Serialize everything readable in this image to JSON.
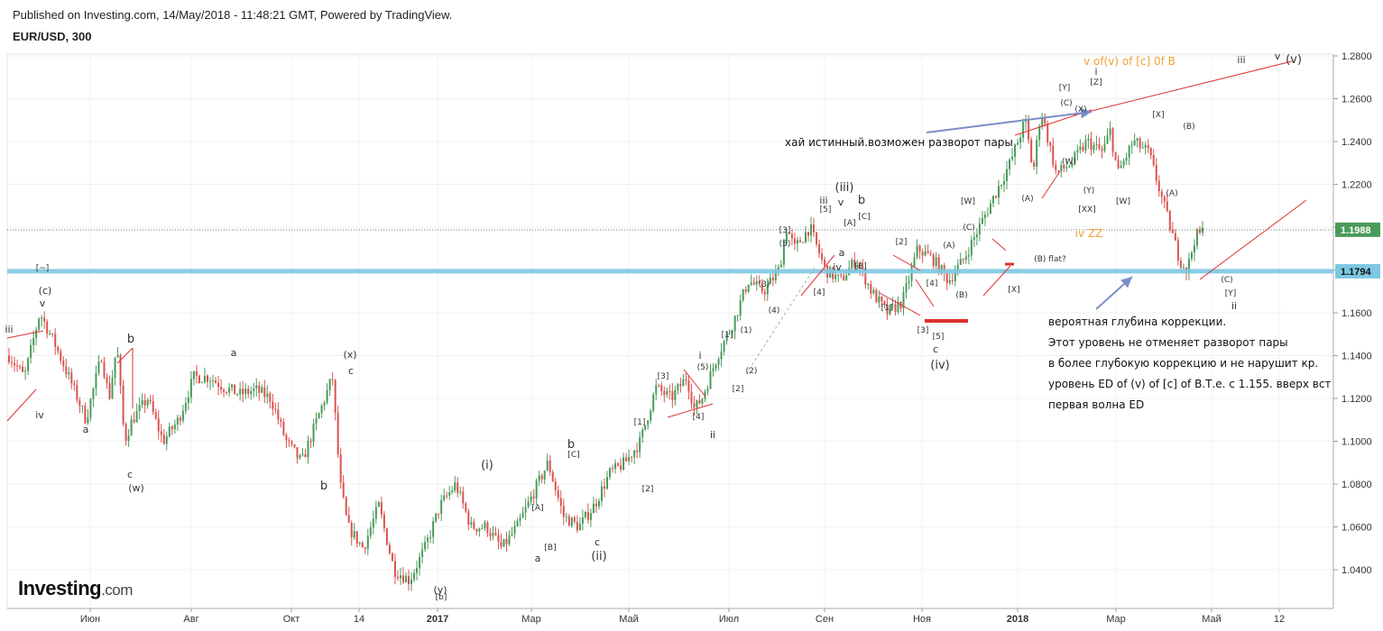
{
  "header": {
    "published": "Published on Investing.com, 14/May/2018 - 11:48:21 GMT, Powered by TradingView.",
    "symbol": "EUR/USD, 300"
  },
  "logo": {
    "main": "Investing",
    "suffix": ".com"
  },
  "colors": {
    "up": "#4a9a5a",
    "down": "#d9534f",
    "support": "#7ec8e3",
    "trendline": "#e03030",
    "arrow": "#7a8fc9",
    "orange": "#f0a030",
    "badge_current": "#4a9a5a",
    "badge_support": "#7ec8e3"
  },
  "chart_data": {
    "type": "candlestick",
    "x_ticks": [
      "Июн",
      "Авг",
      "Окт",
      "14",
      "2017",
      "Мар",
      "Май",
      "Июл",
      "Сен",
      "Ноя",
      "2018",
      "Мар",
      "Май",
      "12"
    ],
    "y_ticks": [
      "1.2800",
      "1.2600",
      "1.2400",
      "1.2200",
      "1.2000",
      "1.1800",
      "1.1600",
      "1.1400",
      "1.1200",
      "1.1000",
      "1.0800",
      "1.0600",
      "1.0400"
    ],
    "ylim": [
      1.025,
      1.285
    ],
    "current_price": "1.1988",
    "support_level": "1.1794",
    "path": [
      [
        0,
        1.14
      ],
      [
        2,
        1.13
      ],
      [
        4,
        1.16
      ],
      [
        6,
        1.145
      ],
      [
        8,
        1.128
      ],
      [
        10,
        1.11
      ],
      [
        12,
        1.14
      ],
      [
        13,
        1.12
      ],
      [
        14,
        1.145
      ],
      [
        15,
        1.1
      ],
      [
        16,
        1.11
      ],
      [
        18,
        1.12
      ],
      [
        20,
        1.1
      ],
      [
        22,
        1.11
      ],
      [
        24,
        1.13
      ],
      [
        26,
        1.13
      ],
      [
        28,
        1.125
      ],
      [
        30,
        1.122
      ],
      [
        32,
        1.124
      ],
      [
        34,
        1.12
      ],
      [
        36,
        1.1
      ],
      [
        38,
        1.09
      ],
      [
        40,
        1.11
      ],
      [
        42,
        1.13
      ],
      [
        43,
        1.08
      ],
      [
        44,
        1.06
      ],
      [
        46,
        1.05
      ],
      [
        48,
        1.07
      ],
      [
        50,
        1.04
      ],
      [
        52,
        1.035
      ],
      [
        54,
        1.05
      ],
      [
        56,
        1.07
      ],
      [
        58,
        1.08
      ],
      [
        60,
        1.06
      ],
      [
        62,
        1.06
      ],
      [
        64,
        1.05
      ],
      [
        66,
        1.06
      ],
      [
        68,
        1.075
      ],
      [
        70,
        1.09
      ],
      [
        72,
        1.065
      ],
      [
        74,
        1.06
      ],
      [
        76,
        1.07
      ],
      [
        78,
        1.085
      ],
      [
        80,
        1.09
      ],
      [
        82,
        1.1
      ],
      [
        84,
        1.125
      ],
      [
        86,
        1.12
      ],
      [
        88,
        1.13
      ],
      [
        89,
        1.115
      ],
      [
        90,
        1.12
      ],
      [
        92,
        1.14
      ],
      [
        94,
        1.155
      ],
      [
        96,
        1.175
      ],
      [
        98,
        1.17
      ],
      [
        100,
        1.18
      ],
      [
        101,
        1.2
      ],
      [
        102,
        1.19
      ],
      [
        104,
        1.2
      ],
      [
        106,
        1.18
      ],
      [
        108,
        1.175
      ],
      [
        110,
        1.185
      ],
      [
        112,
        1.17
      ],
      [
        114,
        1.16
      ],
      [
        116,
        1.165
      ],
      [
        118,
        1.19
      ],
      [
        120,
        1.185
      ],
      [
        122,
        1.175
      ],
      [
        124,
        1.185
      ],
      [
        126,
        1.2
      ],
      [
        128,
        1.215
      ],
      [
        130,
        1.23
      ],
      [
        132,
        1.25
      ],
      [
        133,
        1.225
      ],
      [
        134,
        1.255
      ],
      [
        136,
        1.225
      ],
      [
        138,
        1.23
      ],
      [
        140,
        1.24
      ],
      [
        142,
        1.235
      ],
      [
        143,
        1.245
      ],
      [
        144,
        1.225
      ],
      [
        146,
        1.24
      ],
      [
        148,
        1.235
      ],
      [
        150,
        1.21
      ],
      [
        152,
        1.185
      ],
      [
        153,
        1.18
      ],
      [
        154,
        1.195
      ],
      [
        155,
        1.198
      ]
    ]
  },
  "wave_labels": [
    {
      "t": "iii",
      "x": 10,
      "y": 369
    },
    {
      "t": "(c)",
      "x": 50,
      "y": 326
    },
    {
      "t": "v",
      "x": 47,
      "y": 340
    },
    {
      "t": "[~]",
      "x": 47,
      "y": 300
    },
    {
      "t": "iv",
      "x": 44,
      "y": 464
    },
    {
      "t": "a",
      "x": 95,
      "y": 480
    },
    {
      "t": "b",
      "x": 145,
      "y": 380
    },
    {
      "t": "c",
      "x": 144,
      "y": 530
    },
    {
      "t": "(w)",
      "x": 151,
      "y": 545
    },
    {
      "t": "a",
      "x": 259,
      "y": 395
    },
    {
      "t": "b",
      "x": 359,
      "y": 543
    },
    {
      "t": "(x)",
      "x": 388,
      "y": 397
    },
    {
      "t": "c",
      "x": 389,
      "y": 415
    },
    {
      "t": "(y)",
      "x": 488,
      "y": 658
    },
    {
      "t": "[b]",
      "x": 489,
      "y": 665
    },
    {
      "t": "(i)",
      "x": 540,
      "y": 520
    },
    {
      "t": "a",
      "x": 596,
      "y": 623
    },
    {
      "t": "[A]",
      "x": 596,
      "y": 566
    },
    {
      "t": "[B]",
      "x": 610,
      "y": 610
    },
    {
      "t": "b",
      "x": 633,
      "y": 497
    },
    {
      "t": "[C]",
      "x": 636,
      "y": 507
    },
    {
      "t": "c",
      "x": 662,
      "y": 605
    },
    {
      "t": "(ii)",
      "x": 664,
      "y": 621
    },
    {
      "t": "[1]",
      "x": 709,
      "y": 471
    },
    {
      "t": "[2]",
      "x": 718,
      "y": 545
    },
    {
      "t": "[3]",
      "x": 735,
      "y": 420
    },
    {
      "t": "[4]",
      "x": 774,
      "y": 465
    },
    {
      "t": "(5)",
      "x": 779,
      "y": 410
    },
    {
      "t": "i",
      "x": 776,
      "y": 398
    },
    {
      "t": "ii",
      "x": 790,
      "y": 486
    },
    {
      "t": "[1]",
      "x": 806,
      "y": 374
    },
    {
      "t": "[2]",
      "x": 818,
      "y": 434
    },
    {
      "t": "(1)",
      "x": 827,
      "y": 369
    },
    {
      "t": "(2)",
      "x": 833,
      "y": 414
    },
    {
      "t": "(3)",
      "x": 847,
      "y": 318
    },
    {
      "t": "(4)",
      "x": 858,
      "y": 347
    },
    {
      "t": "[3]",
      "x": 870,
      "y": 258
    },
    {
      "t": "(5)",
      "x": 870,
      "y": 273
    },
    {
      "t": "[4]",
      "x": 908,
      "y": 327
    },
    {
      "t": "iii",
      "x": 913,
      "y": 226
    },
    {
      "t": "[5]",
      "x": 915,
      "y": 235
    },
    {
      "t": "(iii)",
      "x": 936,
      "y": 212
    },
    {
      "t": "v",
      "x": 932,
      "y": 228
    },
    {
      "t": "b",
      "x": 955,
      "y": 226
    },
    {
      "t": "[C]",
      "x": 958,
      "y": 243
    },
    {
      "t": "[A]",
      "x": 942,
      "y": 250
    },
    {
      "t": "a",
      "x": 933,
      "y": 284
    },
    {
      "t": "iv",
      "x": 928,
      "y": 300
    },
    {
      "t": "[B]",
      "x": 954,
      "y": 298
    },
    {
      "t": "[2]",
      "x": 999,
      "y": 271
    },
    {
      "t": "[1]",
      "x": 983,
      "y": 344
    },
    {
      "t": "[4]",
      "x": 1033,
      "y": 317
    },
    {
      "t": "[3]",
      "x": 1023,
      "y": 369
    },
    {
      "t": "[5]",
      "x": 1040,
      "y": 376
    },
    {
      "t": "c",
      "x": 1037,
      "y": 391
    },
    {
      "t": "(iv)",
      "x": 1042,
      "y": 409
    },
    {
      "t": "(A)",
      "x": 1052,
      "y": 275
    },
    {
      "t": "(B)",
      "x": 1066,
      "y": 330
    },
    {
      "t": "(C)",
      "x": 1074,
      "y": 255
    },
    {
      "t": "[W]",
      "x": 1073,
      "y": 226
    },
    {
      "t": "[X]",
      "x": 1124,
      "y": 324
    },
    {
      "t": "(B) flat?",
      "x": 1164,
      "y": 290
    },
    {
      "t": "(A)",
      "x": 1139,
      "y": 223
    },
    {
      "t": "[Y]",
      "x": 1180,
      "y": 100
    },
    {
      "t": "(C)",
      "x": 1182,
      "y": 117
    },
    {
      "t": "(W)",
      "x": 1185,
      "y": 182
    },
    {
      "t": "(X)",
      "x": 1198,
      "y": 124
    },
    {
      "t": "(Y)",
      "x": 1207,
      "y": 214
    },
    {
      "t": "[XX]",
      "x": 1205,
      "y": 235
    },
    {
      "t": "[W]",
      "x": 1245,
      "y": 226
    },
    {
      "t": "[X]",
      "x": 1284,
      "y": 130
    },
    {
      "t": "(A)",
      "x": 1299,
      "y": 217
    },
    {
      "t": "(B)",
      "x": 1318,
      "y": 143
    },
    {
      "t": "i",
      "x": 1215,
      "y": 83
    },
    {
      "t": "[Z]",
      "x": 1215,
      "y": 94
    },
    {
      "t": "(C)",
      "x": 1360,
      "y": 313
    },
    {
      "t": "[Y]",
      "x": 1364,
      "y": 328
    },
    {
      "t": "ii",
      "x": 1368,
      "y": 343
    },
    {
      "t": "iii",
      "x": 1376,
      "y": 70
    },
    {
      "t": "v",
      "x": 1416,
      "y": 66
    },
    {
      "t": "(v)",
      "x": 1434,
      "y": 70
    }
  ],
  "annotations": {
    "orange_top": "v of(v) of [c] 0f B",
    "orange_mid": "iv ZZ",
    "high_note": "хай истинный.возможен разворот пары",
    "notes": [
      "вероятная глубина коррекции.",
      "Этот уровень не отменяет разворот пары",
      "в более глубокую коррекцию и не нарушит кр.",
      "уровень ED of (v) of [c] of B.Т.е. с 1.155. вверх вст",
      "первая волна ED"
    ]
  }
}
